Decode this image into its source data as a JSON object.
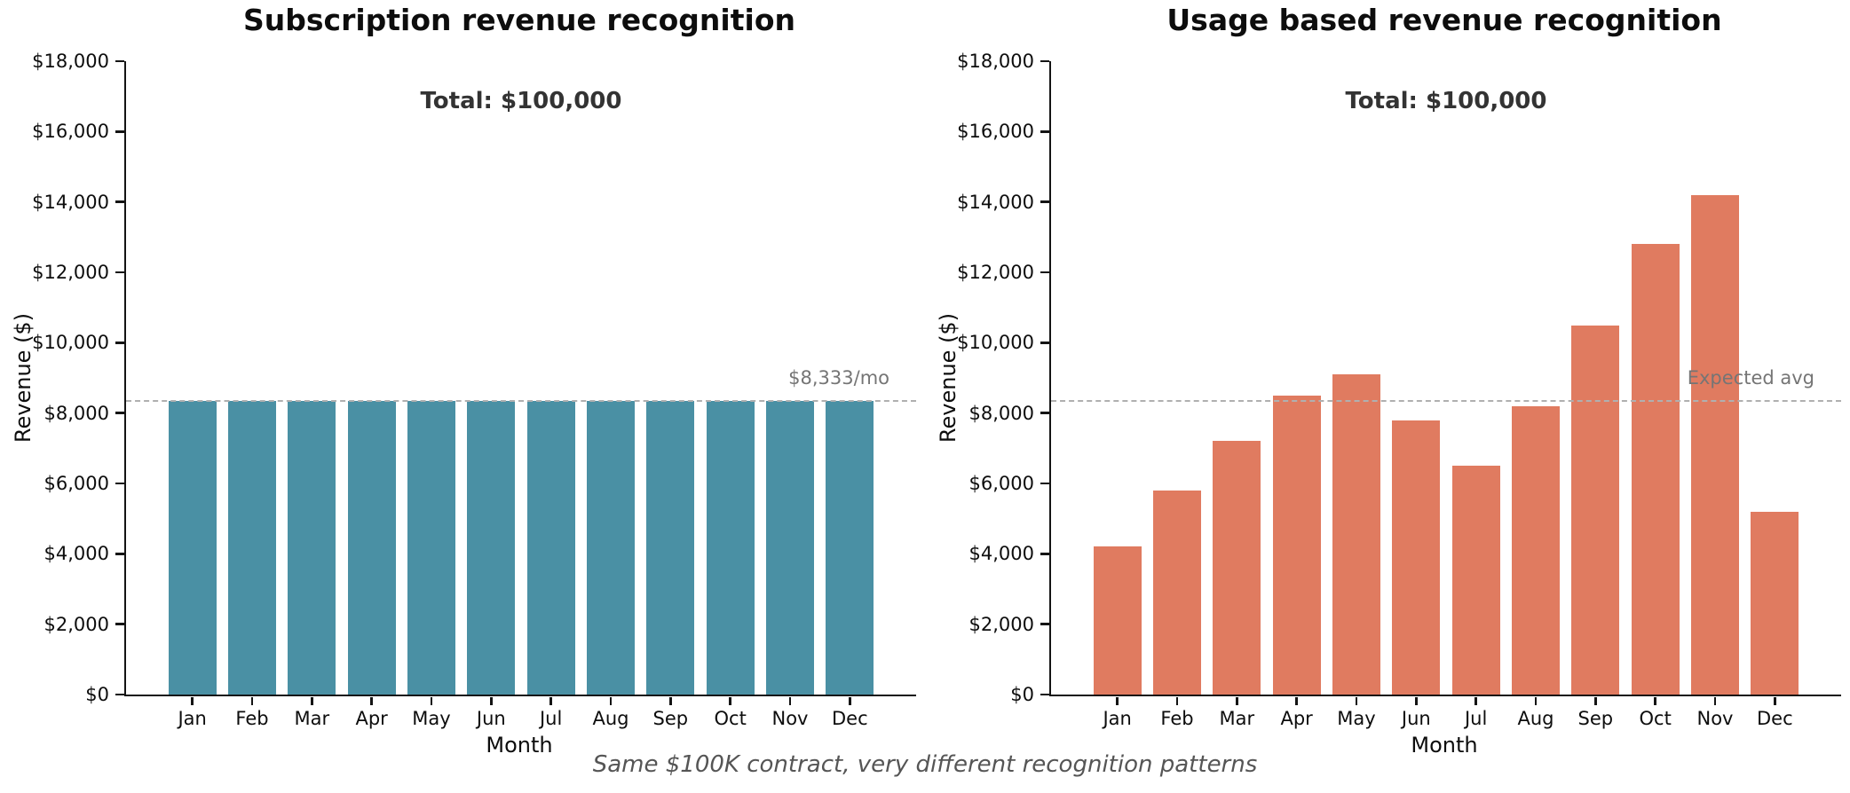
{
  "caption": "Same $100K contract, very different recognition patterns",
  "chart_data": [
    {
      "type": "bar",
      "title": "Subscription revenue recognition",
      "xlabel": "Month",
      "ylabel": "Revenue ($)",
      "categories": [
        "Jan",
        "Feb",
        "Mar",
        "Apr",
        "May",
        "Jun",
        "Jul",
        "Aug",
        "Sep",
        "Oct",
        "Nov",
        "Dec"
      ],
      "values": [
        8333.33,
        8333.33,
        8333.33,
        8333.33,
        8333.33,
        8333.33,
        8333.33,
        8333.33,
        8333.33,
        8333.33,
        8333.33,
        8333.33
      ],
      "annotation": "Total: $100,000",
      "bar_color": "#4a90a4",
      "ylim": [
        0,
        18000
      ],
      "ytick_interval": 2000,
      "ytick_prefix": "$",
      "grid": false,
      "legend": "none",
      "ref_line": {
        "value": 8333.33,
        "label": "$8,333/mo",
        "style": "dashed",
        "color": "#b0b0b0"
      }
    },
    {
      "type": "bar",
      "title": "Usage based revenue recognition",
      "xlabel": "Month",
      "ylabel": "Revenue ($)",
      "categories": [
        "Jan",
        "Feb",
        "Mar",
        "Apr",
        "May",
        "Jun",
        "Jul",
        "Aug",
        "Sep",
        "Oct",
        "Nov",
        "Dec"
      ],
      "values": [
        4200,
        5800,
        7200,
        8500,
        9100,
        7800,
        6500,
        8200,
        10500,
        12800,
        14200,
        5200
      ],
      "annotation": "Total: $100,000",
      "bar_color": "#e07b60",
      "ylim": [
        0,
        18000
      ],
      "ytick_interval": 2000,
      "ytick_prefix": "$",
      "grid": false,
      "legend": "none",
      "ref_line": {
        "value": 8333.33,
        "label": "Expected avg",
        "style": "dashed",
        "color": "#b0b0b0"
      }
    }
  ]
}
